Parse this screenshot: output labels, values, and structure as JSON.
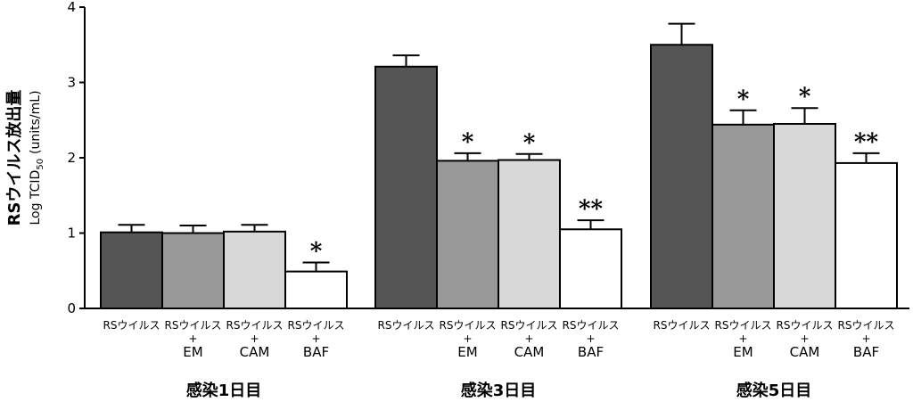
{
  "chart_data": {
    "type": "bar",
    "ylabel": "RSウイルス放出量",
    "ylabel_sub_prefix": "Log TCID",
    "ylabel_sub_subscript": "50",
    "ylabel_sub_suffix": "(units/mL)",
    "ylim": [
      0,
      4
    ],
    "yticks": [
      "0",
      "1",
      "2",
      "3",
      "4"
    ],
    "grid": false,
    "colors": [
      "#555555",
      "#999999",
      "#d8d8d8",
      "#ffffff"
    ],
    "treatments": [
      {
        "line1": "RSウイルス",
        "line2": "",
        "line3": ""
      },
      {
        "line1": "RSウイルス",
        "line2": "+",
        "line3": "EM"
      },
      {
        "line1": "RSウイルス",
        "line2": "+",
        "line3": "CAM"
      },
      {
        "line1": "RSウイルス",
        "line2": "+",
        "line3": "BAF"
      }
    ],
    "groups": [
      {
        "label": "感染1日目",
        "bars": [
          {
            "value": 1.01,
            "error": 0.1,
            "sig": ""
          },
          {
            "value": 1.0,
            "error": 0.1,
            "sig": ""
          },
          {
            "value": 1.02,
            "error": 0.09,
            "sig": ""
          },
          {
            "value": 0.49,
            "error": 0.12,
            "sig": "*"
          }
        ]
      },
      {
        "label": "感染3日目",
        "bars": [
          {
            "value": 3.21,
            "error": 0.15,
            "sig": ""
          },
          {
            "value": 1.96,
            "error": 0.1,
            "sig": "*"
          },
          {
            "value": 1.97,
            "error": 0.08,
            "sig": "*"
          },
          {
            "value": 1.05,
            "error": 0.12,
            "sig": "**"
          }
        ]
      },
      {
        "label": "感染5日目",
        "bars": [
          {
            "value": 3.5,
            "error": 0.28,
            "sig": ""
          },
          {
            "value": 2.44,
            "error": 0.19,
            "sig": "*"
          },
          {
            "value": 2.45,
            "error": 0.21,
            "sig": "*"
          },
          {
            "value": 1.93,
            "error": 0.13,
            "sig": "**"
          }
        ]
      }
    ]
  }
}
